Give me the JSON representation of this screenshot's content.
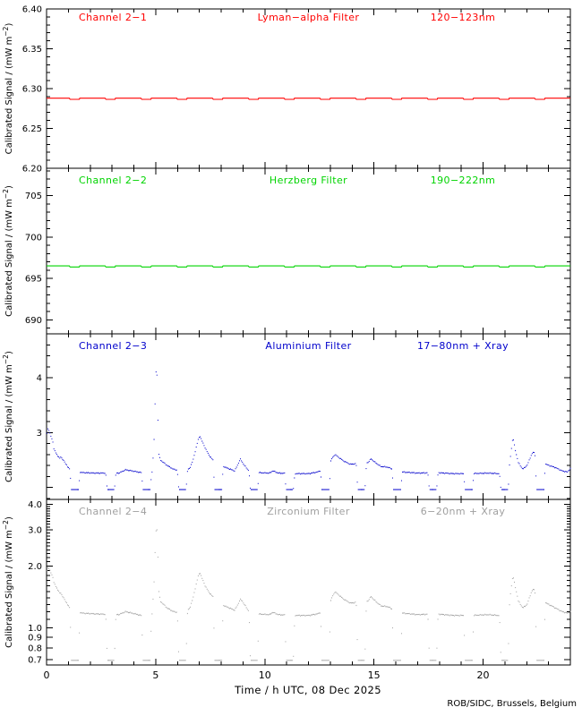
{
  "figure": {
    "xlabel": "Time / h UTC, 08 Dec 2025",
    "credit": "ROB/SIDC, Brussels, Belgium",
    "ylabel": {
      "prefix": "Calibrated Signal / (mW m",
      "sup": "−2",
      "suffix": ")"
    },
    "x_range": [
      0,
      24
    ],
    "x_ticks_labeled": [
      0,
      5,
      10,
      15,
      20
    ],
    "x_minor_step": 1,
    "background": "#ffffff",
    "axis_color": "#000000"
  },
  "dips": {
    "starts": [
      1.05,
      2.69,
      4.33,
      5.97,
      7.61,
      9.25,
      10.89,
      12.53,
      14.17,
      15.81,
      17.45,
      19.09,
      20.73,
      22.37
    ],
    "width": 0.47,
    "ramp": 0.07
  },
  "chart_data": [
    {
      "id": "channel-2-1",
      "type": "line",
      "title": "Channel 2−1",
      "filter": "Lyman−alpha Filter",
      "band": "120−123nm",
      "color": "#ff0000",
      "yscale": "linear",
      "yrange": [
        6.2,
        6.4
      ],
      "ytick_values": [
        6.2,
        6.25,
        6.3,
        6.35,
        6.4
      ],
      "ytick_labels": [
        "6.20",
        "6.25",
        "6.30",
        "6.35",
        "6.40"
      ],
      "yminor_step": 0.01,
      "baseline": 6.288,
      "dip_depth": 0.0015
    },
    {
      "id": "channel-2-2",
      "type": "line",
      "title": "Channel 2−2",
      "filter": "Herzberg Filter",
      "band": "190−222nm",
      "color": "#00d400",
      "yscale": "linear",
      "yrange": [
        688.3,
        708.3
      ],
      "ytick_values": [
        690,
        695,
        700,
        705
      ],
      "ytick_labels": [
        "690",
        "695",
        "700",
        "705"
      ],
      "yminor_step": 1,
      "baseline": 696.5,
      "dip_depth": 0.12
    },
    {
      "id": "channel-2-3",
      "type": "scatter",
      "title": "Channel 2−3",
      "filter": "Aluminium Filter",
      "band": "17−80nm + Xray",
      "color": "#0000cc",
      "yscale": "linear",
      "yrange": [
        1.78,
        4.8
      ],
      "ytick_values": [
        2,
        3,
        4
      ],
      "ytick_labels": [
        "",
        "3",
        "4"
      ],
      "yminor_step": 0.2,
      "dip_level": 1.96,
      "points": [
        [
          0,
          3.05
        ],
        [
          0.15,
          2.92
        ],
        [
          0.3,
          2.75
        ],
        [
          0.5,
          2.6
        ],
        [
          0.7,
          2.5
        ],
        [
          0.9,
          2.4
        ],
        [
          1.05,
          2.33
        ],
        [
          1.6,
          2.27
        ],
        [
          2.2,
          2.26
        ],
        [
          3.3,
          2.26
        ],
        [
          3.6,
          2.32
        ],
        [
          3.9,
          2.3
        ],
        [
          4.3,
          2.27
        ],
        [
          4.82,
          2.28
        ],
        [
          4.9,
          2.8
        ],
        [
          4.97,
          3.8
        ],
        [
          5.02,
          4.42
        ],
        [
          5.08,
          3.3
        ],
        [
          5.13,
          2.6
        ],
        [
          5.2,
          2.5
        ],
        [
          5.35,
          2.45
        ],
        [
          5.5,
          2.4
        ],
        [
          5.8,
          2.33
        ],
        [
          6.3,
          2.28
        ],
        [
          6.55,
          2.35
        ],
        [
          6.7,
          2.5
        ],
        [
          6.85,
          2.75
        ],
        [
          6.95,
          2.9
        ],
        [
          7.02,
          2.93
        ],
        [
          7.1,
          2.85
        ],
        [
          7.25,
          2.72
        ],
        [
          7.4,
          2.6
        ],
        [
          7.6,
          2.5
        ],
        [
          7.9,
          2.42
        ],
        [
          8.2,
          2.36
        ],
        [
          8.6,
          2.3
        ],
        [
          8.75,
          2.42
        ],
        [
          8.85,
          2.52
        ],
        [
          8.95,
          2.46
        ],
        [
          9.05,
          2.4
        ],
        [
          9.2,
          2.32
        ],
        [
          9.6,
          2.27
        ],
        [
          10.2,
          2.26
        ],
        [
          10.35,
          2.3
        ],
        [
          10.6,
          2.26
        ],
        [
          11.3,
          2.25
        ],
        [
          12.0,
          2.25
        ],
        [
          12.4,
          2.28
        ],
        [
          12.6,
          2.32
        ],
        [
          12.9,
          2.38
        ],
        [
          13.05,
          2.52
        ],
        [
          13.2,
          2.6
        ],
        [
          13.35,
          2.55
        ],
        [
          13.6,
          2.48
        ],
        [
          13.9,
          2.42
        ],
        [
          14.7,
          2.45
        ],
        [
          14.85,
          2.52
        ],
        [
          15.05,
          2.45
        ],
        [
          15.3,
          2.38
        ],
        [
          15.6,
          2.37
        ],
        [
          15.9,
          2.32
        ],
        [
          16.3,
          2.28
        ],
        [
          17.0,
          2.26
        ],
        [
          17.8,
          2.27
        ],
        [
          18.6,
          2.25
        ],
        [
          19.4,
          2.25
        ],
        [
          20.2,
          2.26
        ],
        [
          20.7,
          2.25
        ],
        [
          21.15,
          2.3
        ],
        [
          21.25,
          2.6
        ],
        [
          21.35,
          2.92
        ],
        [
          21.45,
          2.7
        ],
        [
          21.6,
          2.45
        ],
        [
          21.8,
          2.33
        ],
        [
          22.0,
          2.4
        ],
        [
          22.2,
          2.6
        ],
        [
          22.3,
          2.65
        ],
        [
          22.45,
          2.5
        ],
        [
          22.7,
          2.45
        ],
        [
          23.0,
          2.4
        ],
        [
          23.3,
          2.36
        ],
        [
          23.6,
          2.3
        ],
        [
          23.85,
          2.28
        ],
        [
          24,
          2.35
        ]
      ]
    },
    {
      "id": "channel-2-4",
      "type": "scatter",
      "title": "Channel 2−4",
      "filter": "Zirconium Filter",
      "band": "6−20nm + Xray",
      "color": "#a0a0a0",
      "yscale": "log",
      "yrange": [
        0.66,
        4.22
      ],
      "ytick_values": [
        0.7,
        0.8,
        0.9,
        1.0,
        2.0,
        3.0,
        4.0
      ],
      "ytick_labels": [
        "0.7",
        "0.8",
        "0.9",
        "1.0",
        "2.0",
        "3.0",
        "4.0"
      ],
      "yminors": [
        1.1,
        1.2,
        1.3,
        1.4,
        1.5,
        1.6,
        1.7,
        1.8,
        1.9,
        2.1,
        2.2,
        2.3,
        2.4,
        2.5,
        2.6,
        2.7,
        2.8,
        2.9,
        3.1,
        3.2,
        3.3,
        3.4,
        3.5,
        3.6,
        3.7,
        3.8,
        3.9
      ],
      "dip_level": 0.695,
      "points": [
        [
          0,
          1.95
        ],
        [
          0.15,
          1.85
        ],
        [
          0.3,
          1.7
        ],
        [
          0.5,
          1.55
        ],
        [
          0.7,
          1.42
        ],
        [
          0.9,
          1.32
        ],
        [
          1.05,
          1.25
        ],
        [
          1.6,
          1.18
        ],
        [
          2.2,
          1.17
        ],
        [
          3.3,
          1.16
        ],
        [
          3.6,
          1.2
        ],
        [
          3.9,
          1.18
        ],
        [
          4.3,
          1.15
        ],
        [
          4.82,
          1.17
        ],
        [
          4.9,
          1.6
        ],
        [
          4.97,
          2.6
        ],
        [
          5.02,
          3.35
        ],
        [
          5.08,
          2.3
        ],
        [
          5.13,
          1.5
        ],
        [
          5.2,
          1.35
        ],
        [
          5.35,
          1.3
        ],
        [
          5.5,
          1.25
        ],
        [
          5.8,
          1.2
        ],
        [
          6.3,
          1.17
        ],
        [
          6.55,
          1.25
        ],
        [
          6.7,
          1.4
        ],
        [
          6.85,
          1.65
        ],
        [
          6.95,
          1.82
        ],
        [
          7.02,
          1.85
        ],
        [
          7.1,
          1.75
        ],
        [
          7.25,
          1.6
        ],
        [
          7.4,
          1.5
        ],
        [
          7.6,
          1.42
        ],
        [
          7.9,
          1.32
        ],
        [
          8.2,
          1.27
        ],
        [
          8.6,
          1.22
        ],
        [
          8.75,
          1.3
        ],
        [
          8.85,
          1.38
        ],
        [
          8.95,
          1.35
        ],
        [
          9.05,
          1.3
        ],
        [
          9.2,
          1.22
        ],
        [
          9.6,
          1.17
        ],
        [
          10.2,
          1.16
        ],
        [
          10.35,
          1.19
        ],
        [
          10.6,
          1.16
        ],
        [
          11.3,
          1.15
        ],
        [
          12.0,
          1.15
        ],
        [
          12.4,
          1.17
        ],
        [
          12.6,
          1.2
        ],
        [
          12.9,
          1.25
        ],
        [
          13.05,
          1.4
        ],
        [
          13.2,
          1.5
        ],
        [
          13.35,
          1.45
        ],
        [
          13.6,
          1.38
        ],
        [
          13.9,
          1.32
        ],
        [
          14.7,
          1.35
        ],
        [
          14.85,
          1.42
        ],
        [
          15.05,
          1.35
        ],
        [
          15.3,
          1.28
        ],
        [
          15.6,
          1.27
        ],
        [
          15.9,
          1.22
        ],
        [
          16.3,
          1.18
        ],
        [
          17.0,
          1.16
        ],
        [
          17.8,
          1.17
        ],
        [
          18.6,
          1.15
        ],
        [
          19.4,
          1.15
        ],
        [
          20.2,
          1.16
        ],
        [
          20.7,
          1.15
        ],
        [
          21.15,
          1.2
        ],
        [
          21.25,
          1.5
        ],
        [
          21.35,
          1.8
        ],
        [
          21.45,
          1.6
        ],
        [
          21.6,
          1.35
        ],
        [
          21.8,
          1.25
        ],
        [
          22.0,
          1.3
        ],
        [
          22.2,
          1.5
        ],
        [
          22.3,
          1.55
        ],
        [
          22.45,
          1.4
        ],
        [
          22.7,
          1.35
        ],
        [
          23.0,
          1.3
        ],
        [
          23.3,
          1.25
        ],
        [
          23.6,
          1.2
        ],
        [
          23.85,
          1.18
        ],
        [
          24,
          1.2
        ]
      ]
    }
  ]
}
